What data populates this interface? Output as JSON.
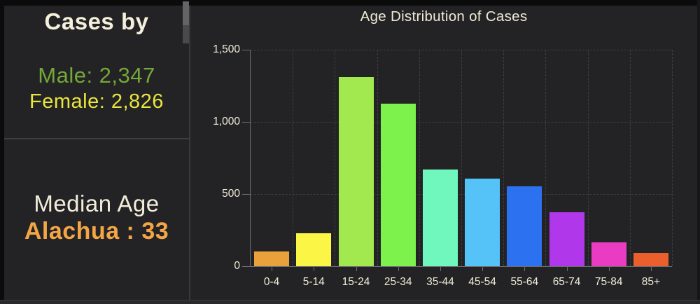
{
  "left_panel": {
    "cases_by": {
      "title": "Cases by",
      "male_label": "Male: 2,347",
      "female_label": "Female: 2,826",
      "male_color": "#74A837",
      "female_color": "#EAE53D"
    },
    "median_age": {
      "title": "Median Age",
      "value_label": "Alachua : 33",
      "value_color": "#F4A546"
    }
  },
  "chart": {
    "title": "Age Distribution of Cases"
  },
  "chart_data": {
    "type": "bar",
    "title": "Age Distribution of Cases",
    "xlabel": "",
    "ylabel": "",
    "categories": [
      "0-4",
      "5-14",
      "15-24",
      "25-34",
      "35-44",
      "45-54",
      "55-64",
      "65-74",
      "75-84",
      "85+"
    ],
    "values": [
      100,
      230,
      1310,
      1125,
      670,
      605,
      555,
      375,
      165,
      90
    ],
    "bar_colors": [
      "#E9A23B",
      "#FBF646",
      "#A2E94F",
      "#7DF24D",
      "#6FF7BE",
      "#55C3F8",
      "#2C72F0",
      "#B138EA",
      "#EA3CC3",
      "#EA5F2C"
    ],
    "ylim": [
      0,
      1500
    ],
    "yticks": [
      {
        "label": "0",
        "value": 0
      },
      {
        "label": "500",
        "value": 500
      },
      {
        "label": "1,000",
        "value": 1000
      },
      {
        "label": "1,500",
        "value": 1500
      }
    ],
    "grid": "dashed",
    "legend": "none",
    "background_color": "#232325",
    "text_color": "#F0EBD8",
    "gridline_color": "#3e3e40",
    "axis_color": "#6e6e72"
  }
}
